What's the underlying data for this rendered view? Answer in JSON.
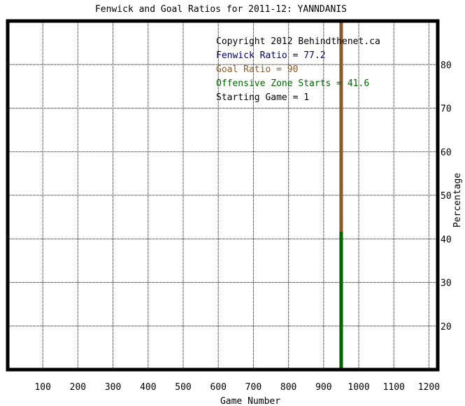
{
  "chart_data": {
    "type": "line",
    "title": "Fenwick and Goal Ratios for 2011-12: YANNDANIS",
    "xlabel": "Game Number",
    "ylabel": "Percentage",
    "xlim": [
      0,
      1225
    ],
    "ylim": [
      10,
      90
    ],
    "x_ticks": [
      100,
      200,
      300,
      400,
      500,
      600,
      700,
      800,
      900,
      1000,
      1100,
      1200
    ],
    "y_ticks": [
      20,
      30,
      40,
      50,
      60,
      70,
      80
    ],
    "x_tick_labels": [
      "100",
      "200",
      "300",
      "400",
      "500",
      "600",
      "700",
      "800",
      "900",
      "1000",
      "1100",
      "1200"
    ],
    "y_tick_labels": [
      "20",
      "30",
      "40",
      "50",
      "60",
      "70",
      "80"
    ],
    "grid": true,
    "annotations": [
      {
        "text": "Copyright 2012 Behindthenet.ca",
        "color": "#000000"
      },
      {
        "text": "Fenwick Ratio = 77.2",
        "color": "#000066"
      },
      {
        "text": "Goal Ratio = 90",
        "color": "#8b5a2b"
      },
      {
        "text": "Offensive Zone Starts = 41.6",
        "color": "#006400"
      },
      {
        "text": "Starting Game = 1",
        "color": "#000000"
      }
    ],
    "series": [
      {
        "color": "#8b5a2b",
        "x": [
          950,
          950
        ],
        "y": [
          10,
          90
        ]
      },
      {
        "color": "#006400",
        "x": [
          950,
          950
        ],
        "y": [
          10,
          41.6
        ]
      }
    ]
  }
}
